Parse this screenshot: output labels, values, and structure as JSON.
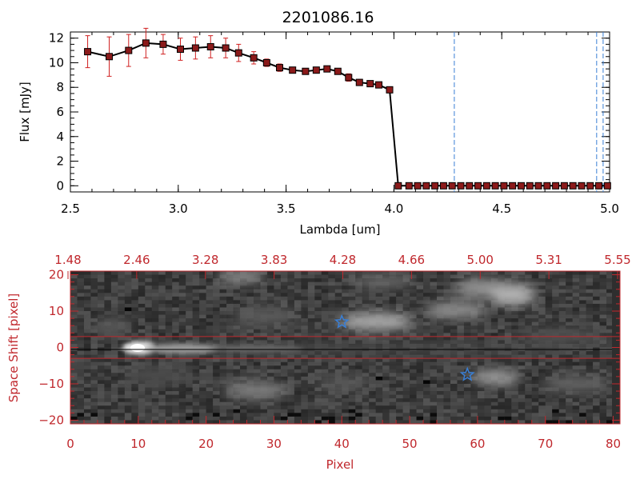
{
  "chart_data": [
    {
      "type": "line",
      "title": "2201086.16",
      "xlabel": "Lambda [um]",
      "ylabel": "Flux [mJy]",
      "xlim": [
        2.5,
        5.0
      ],
      "ylim": [
        -0.5,
        12.5
      ],
      "x_ticks": [
        2.5,
        3.0,
        3.5,
        4.0,
        4.5,
        5.0
      ],
      "x_tick_labels": [
        "2.5",
        "3.0",
        "3.5",
        "4.0",
        "4.5",
        "5.0"
      ],
      "y_ticks": [
        0,
        2,
        4,
        6,
        8,
        10,
        12
      ],
      "y_tick_labels": [
        "0",
        "2",
        "4",
        "6",
        "8",
        "10",
        "12"
      ],
      "series": [
        {
          "x": [
            2.58,
            2.68,
            2.77,
            2.85,
            2.93,
            3.01,
            3.08,
            3.15,
            3.22,
            3.28,
            3.35,
            3.41,
            3.47,
            3.53,
            3.59,
            3.64,
            3.69,
            3.74,
            3.79,
            3.84,
            3.89,
            3.93,
            3.98,
            4.02,
            4.07,
            4.11,
            4.15,
            4.19,
            4.23,
            4.27,
            4.31,
            4.35,
            4.39,
            4.43,
            4.47,
            4.51,
            4.55,
            4.59,
            4.63,
            4.67,
            4.71,
            4.75,
            4.79,
            4.83,
            4.87,
            4.91,
            4.95,
            4.99
          ],
          "y": [
            10.9,
            10.5,
            11.0,
            11.6,
            11.5,
            11.1,
            11.2,
            11.3,
            11.2,
            10.8,
            10.4,
            10.0,
            9.6,
            9.4,
            9.3,
            9.4,
            9.5,
            9.3,
            8.8,
            8.4,
            8.3,
            8.2,
            7.8,
            0,
            0,
            0,
            0,
            0,
            0,
            0,
            0,
            0,
            0,
            0,
            0,
            0,
            0,
            0,
            0,
            0,
            0,
            0,
            0,
            0,
            0,
            0,
            0,
            0
          ],
          "err": [
            1.3,
            1.6,
            1.3,
            1.2,
            0.8,
            0.9,
            0.9,
            0.9,
            0.8,
            0.7,
            0.5,
            0.3,
            0.3,
            0.2,
            0.2,
            0.2,
            0.2,
            0.2,
            0.3,
            0.2,
            0.2,
            0.2,
            0.2,
            0,
            0,
            0,
            0,
            0,
            0,
            0,
            0,
            0,
            0,
            0,
            0,
            0,
            0,
            0,
            0,
            0,
            0,
            0,
            0,
            0,
            0,
            0,
            0,
            0
          ]
        }
      ],
      "vertical_lines": [
        4.28,
        4.94,
        4.97
      ],
      "colors": {
        "line": "#000000",
        "marker": "#8b1a1a",
        "errorbar": "#d02020",
        "vline": "#3a7fd5"
      }
    },
    {
      "type": "heatmap",
      "xlabel": "Pixel",
      "ylabel": "Space Shift [pixel]",
      "xlim": [
        0,
        81
      ],
      "ylim": [
        -21,
        21
      ],
      "x_ticks": [
        0,
        10,
        20,
        30,
        40,
        50,
        60,
        70,
        80
      ],
      "x_tick_labels": [
        "0",
        "10",
        "20",
        "30",
        "40",
        "50",
        "60",
        "70",
        "80"
      ],
      "y_ticks": [
        -20,
        -10,
        0,
        10,
        20
      ],
      "y_tick_labels": [
        "−20",
        "−10",
        "0",
        "10",
        "20"
      ],
      "top_axis_labels": [
        "1.48",
        "2.46",
        "3.28",
        "3.83",
        "4.28",
        "4.66",
        "5.00",
        "5.31",
        "5.55"
      ],
      "extraction_window": [
        -3,
        3
      ],
      "star_markers": [
        {
          "x": 40,
          "y": 7
        },
        {
          "x": 58.5,
          "y": -7.5
        }
      ],
      "colors": {
        "axis": "#c0282d",
        "star": "#3a7fd5"
      }
    }
  ]
}
